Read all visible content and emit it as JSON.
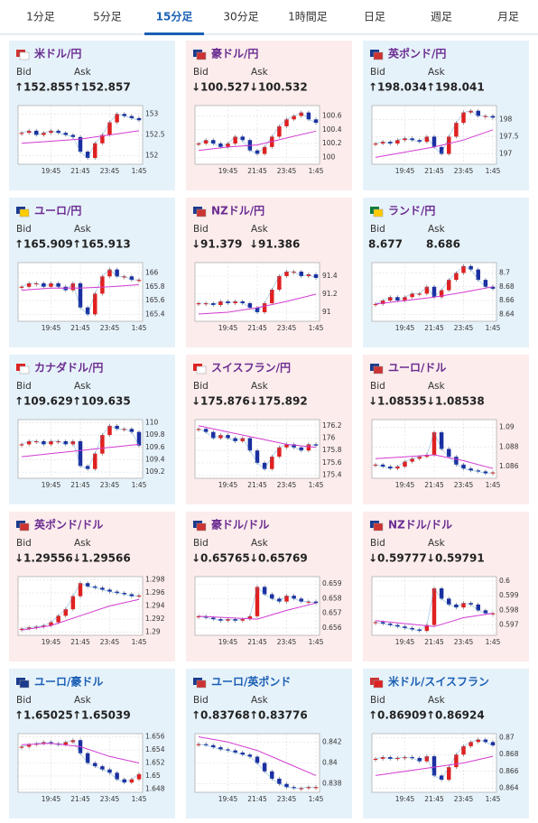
{
  "tabs": [
    "1分足",
    "5分足",
    "15分足",
    "30分足",
    "1時間足",
    "日足",
    "週足",
    "月足"
  ],
  "selected_tab": 2,
  "cards": [
    {
      "title": "米ドル/円",
      "title_color": "#6a2c91",
      "background": "#e6f2fa",
      "bid_label": "Bid",
      "ask_label": "Ask",
      "bid": "↑152.855",
      "ask": "↑152.857",
      "chart": {
        "ylim": [
          151.8,
          153.2
        ],
        "yticks": [
          152,
          152.5,
          153
        ],
        "xticks": [
          {
            "value": 4,
            "label": "19:45"
          },
          {
            "value": 8,
            "label": "21:45"
          },
          {
            "value": 12,
            "label": "23:45"
          },
          {
            "value": 16,
            "label": "1:45"
          }
        ],
        "closes": [
          152.55,
          152.6,
          152.5,
          152.55,
          152.6,
          152.55,
          152.5,
          152.45,
          152.1,
          151.95,
          152.3,
          152.5,
          152.8,
          153.0,
          152.95,
          152.9,
          152.85
        ],
        "ma": [
          152.3,
          152.35,
          152.4,
          152.5,
          152.6
        ]
      }
    },
    {
      "title": "豪ドル/円",
      "title_color": "#6a2c91",
      "background": "#fcecec",
      "bid_label": "Bid",
      "ask_label": "Ask",
      "bid": "↓100.527",
      "ask": "↓100.532",
      "chart": {
        "ylim": [
          99.9,
          100.75
        ],
        "yticks": [
          100,
          100.2,
          100.4,
          100.6
        ],
        "xticks": [
          {
            "value": 4,
            "label": "19:45"
          },
          {
            "value": 8,
            "label": "21:45"
          },
          {
            "value": 12,
            "label": "23:45"
          },
          {
            "value": 16,
            "label": "1:45"
          }
        ],
        "closes": [
          100.2,
          100.25,
          100.2,
          100.15,
          100.2,
          100.3,
          100.25,
          100.1,
          100.05,
          100.15,
          100.3,
          100.45,
          100.55,
          100.6,
          100.65,
          100.55,
          100.5
        ],
        "ma": [
          100.1,
          100.15,
          100.18,
          100.28,
          100.38
        ]
      }
    },
    {
      "title": "英ポンド/円",
      "title_color": "#6a2c91",
      "background": "#e6f2fa",
      "bid_label": "Bid",
      "ask_label": "Ask",
      "bid": "↑198.034",
      "ask": "↑198.041",
      "chart": {
        "ylim": [
          196.7,
          198.4
        ],
        "yticks": [
          197,
          197.5,
          198
        ],
        "xticks": [
          {
            "value": 4,
            "label": "19:45"
          },
          {
            "value": 8,
            "label": "21:45"
          },
          {
            "value": 12,
            "label": "23:45"
          },
          {
            "value": 16,
            "label": "1:45"
          }
        ],
        "closes": [
          197.3,
          197.35,
          197.3,
          197.4,
          197.45,
          197.4,
          197.35,
          197.5,
          197.2,
          197.0,
          197.5,
          197.9,
          198.2,
          198.25,
          198.1,
          198.1,
          198.05
        ],
        "ma": [
          196.9,
          197.05,
          197.2,
          197.4,
          197.7
        ]
      }
    },
    {
      "title": "ユーロ/円",
      "title_color": "#6a2c91",
      "background": "#e6f2fa",
      "bid_label": "Bid",
      "ask_label": "Ask",
      "bid": "↑165.909",
      "ask": "↑165.913",
      "chart": {
        "ylim": [
          165.3,
          166.15
        ],
        "yticks": [
          165.4,
          165.6,
          165.8,
          166
        ],
        "xticks": [
          {
            "value": 4,
            "label": "19:45"
          },
          {
            "value": 8,
            "label": "21:45"
          },
          {
            "value": 12,
            "label": "23:45"
          },
          {
            "value": 16,
            "label": "1:45"
          }
        ],
        "closes": [
          165.8,
          165.85,
          165.85,
          165.8,
          165.85,
          165.8,
          165.75,
          165.85,
          165.5,
          165.4,
          165.7,
          165.95,
          166.05,
          165.95,
          165.95,
          165.9,
          165.9
        ],
        "ma": [
          165.75,
          165.78,
          165.78,
          165.8,
          165.83
        ]
      }
    },
    {
      "title": "NZドル/円",
      "title_color": "#6a2c91",
      "background": "#fcecec",
      "bid_label": "Bid",
      "ask_label": "Ask",
      "bid": "↓91.379",
      "ask": "↓91.386",
      "chart": {
        "ylim": [
          90.9,
          91.55
        ],
        "yticks": [
          91,
          91.2,
          91.4
        ],
        "xticks": [
          {
            "value": 4,
            "label": "19:45"
          },
          {
            "value": 8,
            "label": "21:45"
          },
          {
            "value": 12,
            "label": "23:45"
          },
          {
            "value": 16,
            "label": "1:45"
          }
        ],
        "closes": [
          91.1,
          91.1,
          91.08,
          91.12,
          91.1,
          91.12,
          91.1,
          91.05,
          91.0,
          91.1,
          91.25,
          91.4,
          91.45,
          91.45,
          91.4,
          91.42,
          91.38
        ],
        "ma": [
          90.98,
          91.0,
          91.05,
          91.12,
          91.2
        ]
      }
    },
    {
      "title": "ランド/円",
      "title_color": "#6a2c91",
      "background": "#e6f2fa",
      "bid_label": "Bid",
      "ask_label": "Ask",
      "bid": "8.677",
      "ask": "8.686",
      "chart": {
        "ylim": [
          8.63,
          8.715
        ],
        "yticks": [
          8.64,
          8.66,
          8.68,
          8.7
        ],
        "xticks": [
          {
            "value": 4,
            "label": "19:45"
          },
          {
            "value": 8,
            "label": "21:45"
          },
          {
            "value": 12,
            "label": "23:45"
          },
          {
            "value": 16,
            "label": "1:45"
          }
        ],
        "closes": [
          8.655,
          8.66,
          8.665,
          8.66,
          8.665,
          8.67,
          8.67,
          8.68,
          8.665,
          8.675,
          8.69,
          8.7,
          8.71,
          8.705,
          8.69,
          8.68,
          8.677
        ],
        "ma": [
          8.655,
          8.66,
          8.665,
          8.672,
          8.68
        ]
      }
    },
    {
      "title": "カナダドル/円",
      "title_color": "#6a2c91",
      "background": "#e6f2fa",
      "bid_label": "Bid",
      "ask_label": "Ask",
      "bid": "↑109.629",
      "ask": "↑109.635",
      "chart": {
        "ylim": [
          109.1,
          110.05
        ],
        "yticks": [
          109.2,
          109.4,
          109.6,
          109.8,
          110
        ],
        "xticks": [
          {
            "value": 4,
            "label": "19:45"
          },
          {
            "value": 8,
            "label": "21:45"
          },
          {
            "value": 12,
            "label": "23:45"
          },
          {
            "value": 16,
            "label": "1:45"
          }
        ],
        "closes": [
          109.65,
          109.7,
          109.7,
          109.65,
          109.7,
          109.7,
          109.65,
          109.7,
          109.3,
          109.25,
          109.5,
          109.8,
          109.95,
          109.9,
          109.9,
          109.85,
          109.63
        ],
        "ma": [
          109.45,
          109.5,
          109.55,
          109.6,
          109.65
        ]
      }
    },
    {
      "title": "スイスフラン/円",
      "title_color": "#6a2c91",
      "background": "#fcecec",
      "bid_label": "Bid",
      "ask_label": "Ask",
      "bid": "↓175.876",
      "ask": "↓175.892",
      "chart": {
        "ylim": [
          175.35,
          176.3
        ],
        "yticks": [
          175.4,
          175.6,
          175.8,
          176,
          176.2
        ],
        "xticks": [
          {
            "value": 4,
            "label": "19:45"
          },
          {
            "value": 8,
            "label": "21:45"
          },
          {
            "value": 12,
            "label": "23:45"
          },
          {
            "value": 16,
            "label": "1:45"
          }
        ],
        "closes": [
          176.15,
          176.1,
          176.0,
          176.05,
          176.0,
          175.95,
          176.0,
          175.8,
          175.6,
          175.5,
          175.7,
          175.85,
          175.9,
          175.85,
          175.8,
          175.9,
          175.88
        ],
        "ma": [
          176.2,
          176.1,
          176.0,
          175.9,
          175.85
        ]
      }
    },
    {
      "title": "ユーロ/ドル",
      "title_color": "#6a2c91",
      "background": "#fcecec",
      "bid_label": "Bid",
      "ask_label": "Ask",
      "bid": "↓1.08535",
      "ask": "↓1.08538",
      "chart": {
        "ylim": [
          1.0848,
          1.0908
        ],
        "yticks": [
          1.086,
          1.088,
          1.09
        ],
        "xticks": [
          {
            "value": 4,
            "label": "19:45"
          },
          {
            "value": 8,
            "label": "21:45"
          },
          {
            "value": 12,
            "label": "23:45"
          },
          {
            "value": 16,
            "label": "1:45"
          }
        ],
        "closes": [
          1.0862,
          1.086,
          1.0858,
          1.086,
          1.0865,
          1.0868,
          1.087,
          1.0872,
          1.0895,
          1.0878,
          1.087,
          1.0862,
          1.0858,
          1.0856,
          1.0855,
          1.0853,
          1.0854
        ],
        "ma": [
          1.0868,
          1.087,
          1.0872,
          1.0866,
          1.0858
        ]
      }
    },
    {
      "title": "英ポンド/ドル",
      "title_color": "#6a2c91",
      "background": "#fcecec",
      "bid_label": "Bid",
      "ask_label": "Ask",
      "bid": "↓1.29556",
      "ask": "↓1.29566",
      "chart": {
        "ylim": [
          1.2895,
          1.2985
        ],
        "yticks": [
          1.29,
          1.292,
          1.294,
          1.296,
          1.298
        ],
        "xticks": [
          {
            "value": 4,
            "label": "19:45"
          },
          {
            "value": 8,
            "label": "21:45"
          },
          {
            "value": 12,
            "label": "23:45"
          },
          {
            "value": 16,
            "label": "1:45"
          }
        ],
        "closes": [
          1.2905,
          1.2907,
          1.2908,
          1.291,
          1.2915,
          1.2925,
          1.2935,
          1.2955,
          1.2975,
          1.297,
          1.2968,
          1.2965,
          1.2962,
          1.296,
          1.2958,
          1.2955,
          1.2956
        ],
        "ma": [
          1.2903,
          1.291,
          1.2925,
          1.294,
          1.295
        ]
      }
    },
    {
      "title": "豪ドル/ドル",
      "title_color": "#6a2c91",
      "background": "#fcecec",
      "bid_label": "Bid",
      "ask_label": "Ask",
      "bid": "↓0.65765",
      "ask": "↓0.65769",
      "chart": {
        "ylim": [
          0.6555,
          0.6595
        ],
        "yticks": [
          0.656,
          0.657,
          0.658,
          0.659
        ],
        "xticks": [
          {
            "value": 4,
            "label": "19:45"
          },
          {
            "value": 8,
            "label": "21:45"
          },
          {
            "value": 12,
            "label": "23:45"
          },
          {
            "value": 16,
            "label": "1:45"
          }
        ],
        "closes": [
          0.6568,
          0.6567,
          0.6566,
          0.6565,
          0.6566,
          0.6565,
          0.6566,
          0.6568,
          0.6588,
          0.6583,
          0.658,
          0.6578,
          0.6582,
          0.658,
          0.6578,
          0.6578,
          0.6577
        ],
        "ma": [
          0.6568,
          0.6567,
          0.6566,
          0.6572,
          0.6577
        ]
      }
    },
    {
      "title": "NZドル/ドル",
      "title_color": "#6a2c91",
      "background": "#fcecec",
      "bid_label": "Bid",
      "ask_label": "Ask",
      "bid": "↓0.59777",
      "ask": "↓0.59791",
      "chart": {
        "ylim": [
          0.5963,
          0.6003
        ],
        "yticks": [
          0.597,
          0.598,
          0.599,
          0.6
        ],
        "xticks": [
          {
            "value": 4,
            "label": "19:45"
          },
          {
            "value": 8,
            "label": "21:45"
          },
          {
            "value": 12,
            "label": "23:45"
          },
          {
            "value": 16,
            "label": "1:45"
          }
        ],
        "closes": [
          0.5972,
          0.5971,
          0.597,
          0.5969,
          0.5968,
          0.5967,
          0.5966,
          0.597,
          0.5995,
          0.5988,
          0.5984,
          0.5982,
          0.5985,
          0.5984,
          0.598,
          0.5978,
          0.5978
        ],
        "ma": [
          0.5973,
          0.5971,
          0.5969,
          0.5975,
          0.5978
        ]
      }
    },
    {
      "title": "ユーロ/豪ドル",
      "title_color": "#1a5fb4",
      "background": "#e6f2fa",
      "bid_label": "Bid",
      "ask_label": "Ask",
      "bid": "↑1.65025",
      "ask": "↑1.65039",
      "chart": {
        "ylim": [
          1.6475,
          1.6565
        ],
        "yticks": [
          1.648,
          1.65,
          1.652,
          1.654,
          1.656
        ],
        "xticks": [
          {
            "value": 4,
            "label": "19:45"
          },
          {
            "value": 8,
            "label": "21:45"
          },
          {
            "value": 12,
            "label": "23:45"
          },
          {
            "value": 16,
            "label": "1:45"
          }
        ],
        "closes": [
          1.6545,
          1.6548,
          1.655,
          1.6552,
          1.655,
          1.6548,
          1.6552,
          1.6555,
          1.6535,
          1.652,
          1.6515,
          1.651,
          1.6505,
          1.6495,
          1.649,
          1.6495,
          1.6503
        ],
        "ma": [
          1.6548,
          1.655,
          1.6545,
          1.653,
          1.652
        ]
      }
    },
    {
      "title": "ユーロ/英ポンド",
      "title_color": "#1a5fb4",
      "background": "#e6f2fa",
      "bid_label": "Bid",
      "ask_label": "Ask",
      "bid": "↑0.83768",
      "ask": "↑0.83776",
      "chart": {
        "ylim": [
          0.8372,
          0.8428
        ],
        "yticks": [
          0.838,
          0.84,
          0.842
        ],
        "xticks": [
          {
            "value": 4,
            "label": "19:45"
          },
          {
            "value": 8,
            "label": "21:45"
          },
          {
            "value": 12,
            "label": "23:45"
          },
          {
            "value": 16,
            "label": "1:45"
          }
        ],
        "closes": [
          0.8418,
          0.8417,
          0.8415,
          0.8413,
          0.8412,
          0.841,
          0.8408,
          0.8406,
          0.84,
          0.8392,
          0.8385,
          0.838,
          0.8377,
          0.8376,
          0.8376,
          0.8377,
          0.8377
        ],
        "ma": [
          0.8425,
          0.842,
          0.8412,
          0.84,
          0.8388
        ]
      }
    },
    {
      "title": "米ドル/スイスフラン",
      "title_color": "#1a5fb4",
      "background": "#e6f2fa",
      "bid_label": "Bid",
      "ask_label": "Ask",
      "bid": "↑0.86909",
      "ask": "↑0.86924",
      "chart": {
        "ylim": [
          0.8635,
          0.8705
        ],
        "yticks": [
          0.864,
          0.866,
          0.868,
          0.87
        ],
        "xticks": [
          {
            "value": 4,
            "label": "19:45"
          },
          {
            "value": 8,
            "label": "21:45"
          },
          {
            "value": 12,
            "label": "23:45"
          },
          {
            "value": 16,
            "label": "1:45"
          }
        ],
        "closes": [
          0.8675,
          0.8677,
          0.8675,
          0.8676,
          0.8677,
          0.8676,
          0.8672,
          0.8678,
          0.8655,
          0.865,
          0.8665,
          0.868,
          0.869,
          0.8695,
          0.8698,
          0.8695,
          0.8691
        ],
        "ma": [
          0.8655,
          0.866,
          0.8665,
          0.867,
          0.8678
        ]
      }
    }
  ]
}
